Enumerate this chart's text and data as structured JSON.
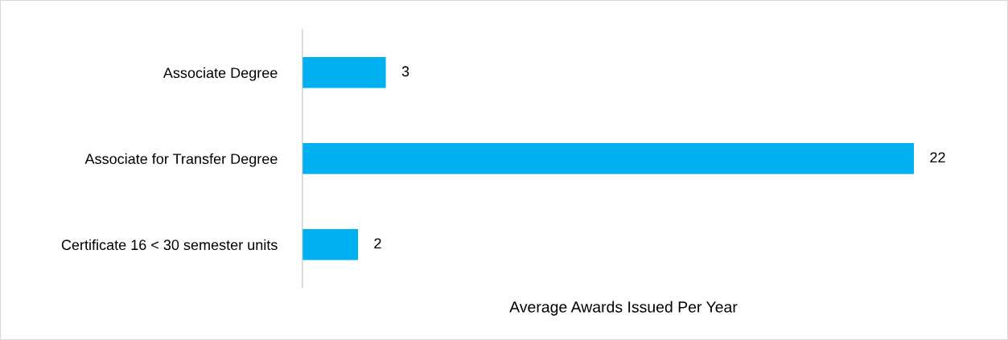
{
  "chart_data": {
    "type": "bar",
    "orientation": "horizontal",
    "xlabel": "Average Awards Issued Per Year",
    "categories": [
      "Associate Degree",
      "Associate for Transfer Degree",
      "Certificate 16 < 30 semester units"
    ],
    "values": [
      3,
      22,
      2
    ],
    "color": "#00b0f0",
    "data_labels": true,
    "tick_labels": "y",
    "grid": false,
    "legend": false
  }
}
